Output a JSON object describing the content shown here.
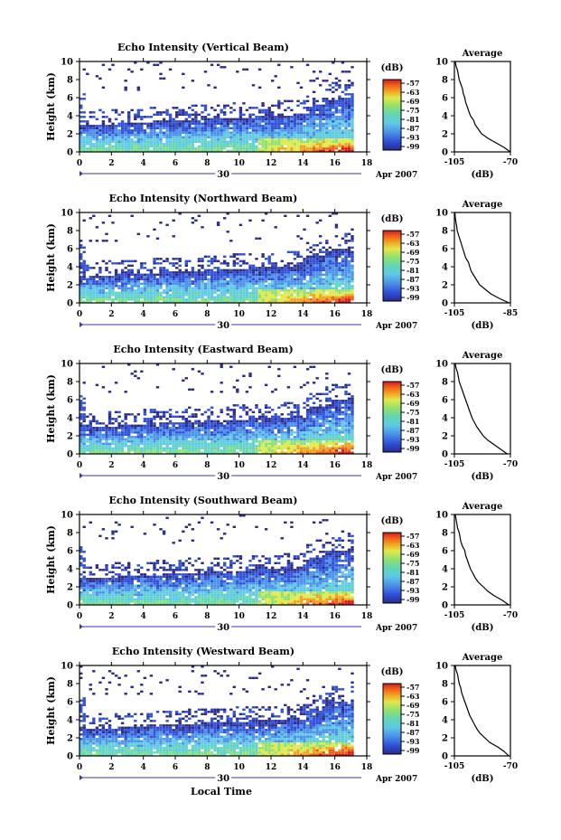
{
  "figure": {
    "xlabel_bottom": "Local Time",
    "date_day": "30",
    "date_month_year": "Apr 2007",
    "unit_label": "(dB)",
    "avg_title": "Average",
    "avg_xlabel": "(dB)"
  },
  "colors": {
    "scale": [
      "#2a2a8a",
      "#2e4fd6",
      "#4a90e8",
      "#5ec9e6",
      "#62d6b6",
      "#8fe070",
      "#e0e84a",
      "#f0a020",
      "#ee5a1a",
      "#d01818"
    ]
  },
  "chart_data": [
    {
      "type": "heatmap",
      "title": "Echo Intensity (Vertical Beam)",
      "ylabel": "Height (km)",
      "xlim": [
        0,
        18
      ],
      "ylim": [
        0,
        10
      ],
      "xticks": [
        "0",
        "2",
        "4",
        "6",
        "8",
        "10",
        "12",
        "14",
        "16",
        "18"
      ],
      "yticks": [
        "0",
        "2",
        "4",
        "6",
        "8",
        "10"
      ],
      "colorbar_ticks": [
        "-57",
        "-63",
        "-69",
        "-75",
        "-81",
        "-87",
        "-93",
        "-99"
      ],
      "data_extent_hours": [
        0,
        17
      ],
      "avg_profile": {
        "xlim": [
          -105,
          -70
        ],
        "xticks": [
          "-105",
          "-70"
        ],
        "yticks": [
          "0",
          "2",
          "4",
          "6",
          "8",
          "10"
        ],
        "height_km": [
          0,
          0.5,
          1,
          1.5,
          2,
          2.5,
          3,
          3.5,
          4,
          4.5,
          5,
          5.5,
          6,
          6.5,
          7,
          7.5,
          8,
          8.5,
          9,
          9.5,
          10
        ],
        "db": [
          -70,
          -74,
          -79,
          -84,
          -88,
          -90,
          -92,
          -93,
          -95,
          -96,
          -97,
          -98,
          -98.5,
          -99.5,
          -100,
          -101,
          -102,
          -102.5,
          -103,
          -104,
          -104.5
        ]
      }
    },
    {
      "type": "heatmap",
      "title": "Echo Intensity (Northward Beam)",
      "ylabel": "Height (km)",
      "xlim": [
        0,
        18
      ],
      "ylim": [
        0,
        10
      ],
      "xticks": [
        "0",
        "2",
        "4",
        "6",
        "8",
        "10",
        "12",
        "14",
        "16",
        "18"
      ],
      "yticks": [
        "0",
        "2",
        "4",
        "6",
        "8",
        "10"
      ],
      "colorbar_ticks": [
        "-57",
        "-63",
        "-69",
        "-75",
        "-81",
        "-87",
        "-93",
        "-99"
      ],
      "data_extent_hours": [
        0,
        17
      ],
      "avg_profile": {
        "xlim": [
          -105,
          -85
        ],
        "xticks": [
          "-105",
          "-85"
        ],
        "yticks": [
          "0",
          "2",
          "4",
          "6",
          "8",
          "10"
        ],
        "height_km": [
          0,
          0.5,
          1,
          1.5,
          2,
          2.5,
          3,
          3.5,
          4,
          4.5,
          5,
          5.5,
          6,
          6.5,
          7,
          7.5,
          8,
          8.5,
          9,
          9.5,
          10
        ],
        "db": [
          -85.5,
          -89,
          -92,
          -94,
          -96,
          -97,
          -98,
          -99,
          -99.5,
          -100,
          -101,
          -101.5,
          -102,
          -102.5,
          -103,
          -103.5,
          -104,
          -104.2,
          -104.5,
          -104.7,
          -104.8
        ]
      }
    },
    {
      "type": "heatmap",
      "title": "Echo Intensity (Eastward Beam)",
      "ylabel": "Height (km)",
      "xlim": [
        0,
        18
      ],
      "ylim": [
        0,
        10
      ],
      "xticks": [
        "0",
        "2",
        "4",
        "6",
        "8",
        "10",
        "12",
        "14",
        "16",
        "18"
      ],
      "yticks": [
        "0",
        "2",
        "4",
        "6",
        "8",
        "10"
      ],
      "colorbar_ticks": [
        "-57",
        "-63",
        "-69",
        "-75",
        "-81",
        "-87",
        "-93",
        "-99"
      ],
      "data_extent_hours": [
        0,
        17
      ],
      "avg_profile": {
        "xlim": [
          -105,
          -70
        ],
        "xticks": [
          "-105",
          "-70"
        ],
        "yticks": [
          "0",
          "2",
          "4",
          "6",
          "8",
          "10"
        ],
        "height_km": [
          0,
          0.5,
          1,
          1.5,
          2,
          2.5,
          3,
          3.5,
          4,
          4.5,
          5,
          5.5,
          6,
          6.5,
          7,
          7.5,
          8,
          8.5,
          9,
          9.5,
          10
        ],
        "db": [
          -72,
          -76,
          -80,
          -84,
          -87,
          -89,
          -91,
          -92.5,
          -94,
          -95,
          -96,
          -97,
          -98,
          -99,
          -100,
          -101,
          -102,
          -102.5,
          -103,
          -104,
          -104.5
        ]
      }
    },
    {
      "type": "heatmap",
      "title": "Echo Intensity (Southward Beam)",
      "ylabel": "Height (km)",
      "xlim": [
        0,
        18
      ],
      "ylim": [
        0,
        10
      ],
      "xticks": [
        "0",
        "2",
        "4",
        "6",
        "8",
        "10",
        "12",
        "14",
        "16",
        "18"
      ],
      "yticks": [
        "0",
        "2",
        "4",
        "6",
        "8",
        "10"
      ],
      "colorbar_ticks": [
        "-57",
        "-63",
        "-69",
        "-75",
        "-81",
        "-87",
        "-93",
        "-99"
      ],
      "data_extent_hours": [
        0,
        17
      ],
      "avg_profile": {
        "xlim": [
          -105,
          -70
        ],
        "xticks": [
          "-105",
          "-70"
        ],
        "yticks": [
          "0",
          "2",
          "4",
          "6",
          "8",
          "10"
        ],
        "height_km": [
          0,
          0.5,
          1,
          1.5,
          2,
          2.5,
          3,
          3.5,
          4,
          4.5,
          5,
          5.5,
          6,
          6.5,
          7,
          7.5,
          8,
          8.5,
          9,
          9.5,
          10
        ],
        "db": [
          -71,
          -75,
          -80,
          -84,
          -87,
          -90,
          -92,
          -93.5,
          -95,
          -96,
          -97,
          -98,
          -98.5,
          -100,
          -101,
          -101.5,
          -102,
          -103,
          -103.5,
          -104,
          -104.5
        ]
      }
    },
    {
      "type": "heatmap",
      "title": "Echo Intensity (Westward Beam)",
      "ylabel": "Height (km)",
      "xlim": [
        0,
        18
      ],
      "ylim": [
        0,
        10
      ],
      "xticks": [
        "0",
        "2",
        "4",
        "6",
        "8",
        "10",
        "12",
        "14",
        "16",
        "18"
      ],
      "yticks": [
        "0",
        "2",
        "4",
        "6",
        "8",
        "10"
      ],
      "colorbar_ticks": [
        "-57",
        "-63",
        "-69",
        "-75",
        "-81",
        "-87",
        "-93",
        "-99"
      ],
      "data_extent_hours": [
        0,
        17
      ],
      "avg_profile": {
        "xlim": [
          -105,
          -70
        ],
        "xticks": [
          "-105",
          "-70"
        ],
        "yticks": [
          "0",
          "2",
          "4",
          "6",
          "8",
          "10"
        ],
        "height_km": [
          0,
          0.5,
          1,
          1.5,
          2,
          2.5,
          3,
          3.5,
          4,
          4.5,
          5,
          5.5,
          6,
          6.5,
          7,
          7.5,
          8,
          8.5,
          9,
          9.5,
          10
        ],
        "db": [
          -71,
          -74,
          -78,
          -83,
          -86,
          -89,
          -91,
          -92.5,
          -94,
          -95.5,
          -96.5,
          -97.5,
          -98.5,
          -99.5,
          -100.5,
          -101,
          -102,
          -102.5,
          -103,
          -104,
          -104.5
        ]
      }
    }
  ]
}
